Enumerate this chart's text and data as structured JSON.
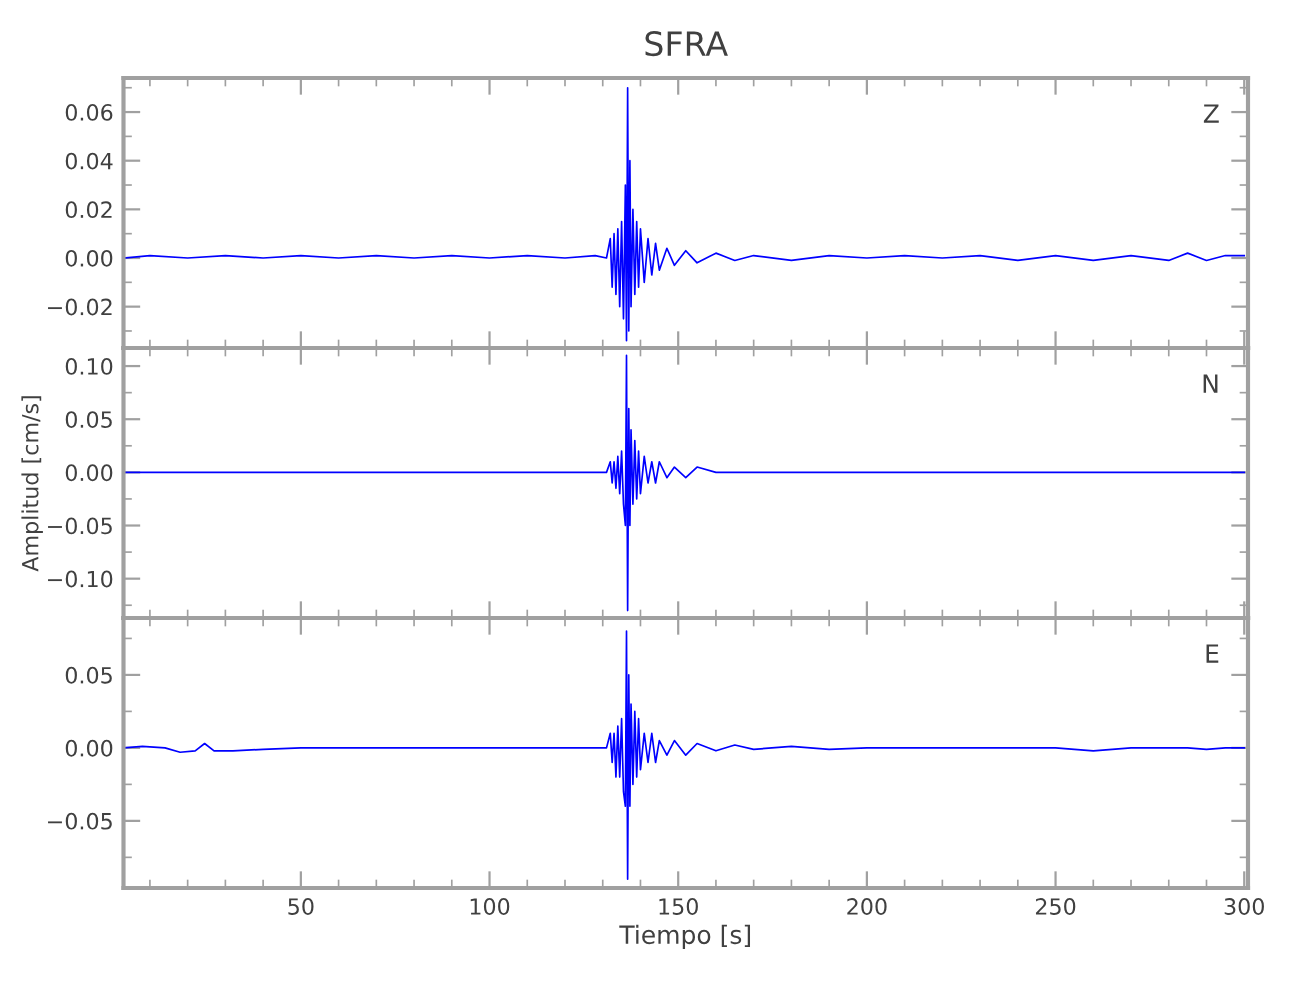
{
  "chart_data": [
    {
      "type": "line",
      "title": "SFRA",
      "annotations": [
        "Z"
      ],
      "color": "#0000ff",
      "tick_labels": "y",
      "grid": false,
      "line_style": "solid",
      "marker": "none",
      "x": [
        3,
        10,
        20,
        30,
        40,
        50,
        60,
        70,
        80,
        90,
        100,
        110,
        120,
        128,
        131,
        132,
        132.5,
        133,
        133.5,
        134,
        134.5,
        135,
        135.5,
        136,
        136.3,
        136.6,
        136.9,
        137.2,
        137.5,
        138,
        138.5,
        139,
        139.5,
        140,
        141,
        142,
        143,
        144,
        145,
        147,
        149,
        152,
        155,
        160,
        165,
        170,
        180,
        190,
        200,
        210,
        220,
        230,
        240,
        250,
        260,
        270,
        280,
        285,
        290,
        295,
        300
      ],
      "values": [
        0,
        0.001,
        0,
        0.001,
        0,
        0.001,
        0,
        0.001,
        0,
        0.001,
        0,
        0.001,
        0,
        0.001,
        0,
        0.008,
        -0.012,
        0.01,
        -0.015,
        0.012,
        -0.02,
        0.015,
        -0.025,
        0.03,
        -0.034,
        0.07,
        -0.03,
        0.04,
        -0.02,
        0.02,
        -0.015,
        0.015,
        -0.012,
        0.012,
        -0.01,
        0.008,
        -0.007,
        0.006,
        -0.005,
        0.004,
        -0.003,
        0.003,
        -0.002,
        0.002,
        -0.001,
        0.001,
        -0.001,
        0.001,
        0,
        0.001,
        0,
        0.001,
        -0.001,
        0.001,
        -0.001,
        0.001,
        -0.001,
        0.002,
        -0.001,
        0.001,
        0.001
      ],
      "xlim": [
        3,
        301
      ],
      "xticks": [
        50,
        100,
        150,
        200,
        250,
        300
      ],
      "ylim": [
        -0.037,
        0.074
      ],
      "yticks": [
        {
          "value": -0.02,
          "label": "−0.02"
        },
        {
          "value": 0,
          "label": "0.00"
        },
        {
          "value": 0.02,
          "label": "0.02"
        },
        {
          "value": 0.04,
          "label": "0.04"
        },
        {
          "value": 0.06,
          "label": "0.06"
        }
      ]
    },
    {
      "type": "line",
      "ylabel": "Amplitud [cm/s]",
      "annotations": [
        "N"
      ],
      "color": "#0000ff",
      "tick_labels": "y",
      "grid": false,
      "line_style": "solid",
      "marker": "none",
      "x": [
        3,
        10,
        20,
        30,
        40,
        50,
        60,
        70,
        80,
        90,
        100,
        110,
        120,
        128,
        131,
        132,
        132.5,
        133,
        133.5,
        134,
        134.5,
        135,
        135.5,
        136,
        136.3,
        136.6,
        136.9,
        137.2,
        137.5,
        138,
        138.5,
        139,
        139.5,
        140,
        141,
        142,
        143,
        144,
        145,
        147,
        149,
        152,
        155,
        160,
        165,
        170,
        180,
        190,
        200,
        210,
        220,
        230,
        240,
        250,
        260,
        270,
        280,
        285,
        290,
        295,
        300
      ],
      "values": [
        0,
        0,
        0,
        0,
        0,
        0,
        0,
        0,
        0,
        0,
        0,
        0,
        0,
        0,
        0,
        0.01,
        -0.01,
        0.01,
        -0.015,
        0.015,
        -0.02,
        0.02,
        -0.03,
        -0.05,
        0.11,
        -0.13,
        0.06,
        -0.05,
        0.04,
        -0.03,
        0.03,
        -0.025,
        0.02,
        -0.02,
        0.015,
        -0.01,
        0.01,
        -0.01,
        0.01,
        -0.005,
        0.005,
        -0.005,
        0.005,
        0,
        0,
        0,
        0,
        0,
        0,
        0,
        0,
        0,
        0,
        0,
        0,
        0,
        0,
        0,
        0,
        0,
        0
      ],
      "xlim": [
        3,
        301
      ],
      "xticks": [
        50,
        100,
        150,
        200,
        250,
        300
      ],
      "ylim": [
        -0.137,
        0.117
      ],
      "yticks": [
        {
          "value": -0.1,
          "label": "−0.10"
        },
        {
          "value": -0.05,
          "label": "−0.05"
        },
        {
          "value": 0,
          "label": "0.00"
        },
        {
          "value": 0.05,
          "label": "0.05"
        },
        {
          "value": 0.1,
          "label": "0.10"
        }
      ]
    },
    {
      "type": "line",
      "xlabel": "Tiempo [s]",
      "annotations": [
        "E"
      ],
      "color": "#0000ff",
      "grid": false,
      "line_style": "solid",
      "marker": "none",
      "x": [
        3,
        8,
        14,
        18,
        22,
        24.5,
        27,
        32,
        40,
        50,
        60,
        70,
        80,
        90,
        100,
        110,
        120,
        128,
        131,
        132,
        132.5,
        133,
        133.5,
        134,
        134.5,
        135,
        135.5,
        136,
        136.3,
        136.6,
        136.9,
        137.2,
        137.5,
        138,
        138.5,
        139,
        139.5,
        140,
        141,
        142,
        143,
        144,
        145,
        147,
        149,
        152,
        155,
        160,
        165,
        170,
        180,
        190,
        200,
        210,
        220,
        230,
        240,
        250,
        260,
        270,
        280,
        285,
        290,
        295,
        300
      ],
      "values": [
        0,
        0.001,
        0,
        -0.003,
        -0.002,
        0.003,
        -0.002,
        -0.002,
        -0.001,
        0,
        0,
        0,
        0,
        0,
        0,
        0,
        0,
        0,
        0,
        0.01,
        -0.01,
        0.01,
        -0.02,
        0.015,
        -0.02,
        0.02,
        -0.03,
        -0.04,
        0.08,
        -0.09,
        0.05,
        -0.04,
        0.03,
        -0.025,
        0.025,
        -0.02,
        0.02,
        -0.015,
        0.01,
        -0.01,
        0.01,
        -0.01,
        0.005,
        -0.005,
        0.005,
        -0.005,
        0.003,
        -0.002,
        0.002,
        -0.001,
        0.001,
        -0.001,
        0,
        0,
        0,
        0,
        0,
        0,
        -0.002,
        0,
        0,
        0,
        -0.001,
        0,
        0
      ],
      "xlim": [
        3,
        301
      ],
      "xticks": [
        50,
        100,
        150,
        200,
        250,
        300
      ],
      "ylim": [
        -0.096,
        0.089
      ],
      "yticks": [
        {
          "value": -0.05,
          "label": "−0.05"
        },
        {
          "value": 0,
          "label": "0.00"
        },
        {
          "value": 0.05,
          "label": "0.05"
        }
      ]
    }
  ]
}
